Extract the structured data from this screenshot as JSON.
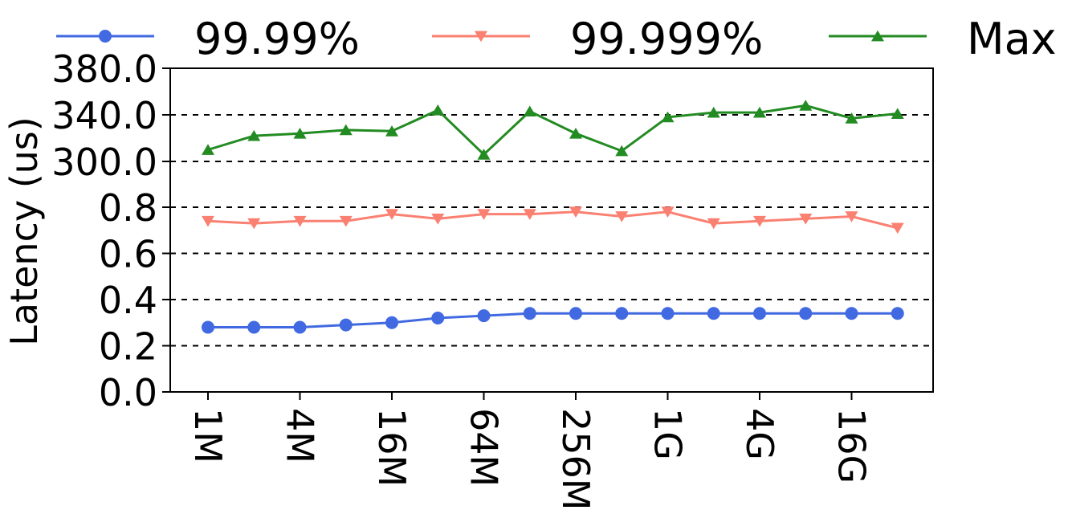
{
  "chart_data": {
    "type": "line",
    "ylabel": "Latency (us)",
    "y_axis_note": "broken axis: lower segment 0.0–0.8, upper segment 300.0–380.0",
    "y_tick_labels": [
      "0.0",
      "0.2",
      "0.4",
      "0.6",
      "0.8",
      "300.0",
      "340.0",
      "380.0"
    ],
    "x_tick_labels": [
      "1M",
      "4M",
      "16M",
      "64M",
      "256M",
      "1G",
      "4G",
      "16G"
    ],
    "x_tick_indices": [
      0,
      2,
      4,
      6,
      8,
      10,
      12,
      14
    ],
    "x_count": 16,
    "grid": "dashed horizontal",
    "legend_position": "top",
    "series": [
      {
        "name": "99.99%",
        "color": "#4169e1",
        "marker": "circle",
        "values": [
          0.28,
          0.28,
          0.28,
          0.29,
          0.3,
          0.32,
          0.33,
          0.34,
          0.34,
          0.34,
          0.34,
          0.34,
          0.34,
          0.34,
          0.34,
          0.34
        ]
      },
      {
        "name": "99.999%",
        "color": "#fa8072",
        "marker": "triangle-down",
        "values": [
          0.74,
          0.73,
          0.74,
          0.74,
          0.77,
          0.75,
          0.77,
          0.77,
          0.78,
          0.76,
          0.78,
          0.73,
          0.74,
          0.75,
          0.76,
          0.71
        ]
      },
      {
        "name": "Max",
        "color": "#228b22",
        "marker": "triangle-up",
        "values": [
          310,
          322,
          324,
          327,
          326,
          344,
          306,
          343,
          324,
          309,
          338,
          342,
          342,
          348,
          337,
          341
        ]
      }
    ]
  }
}
